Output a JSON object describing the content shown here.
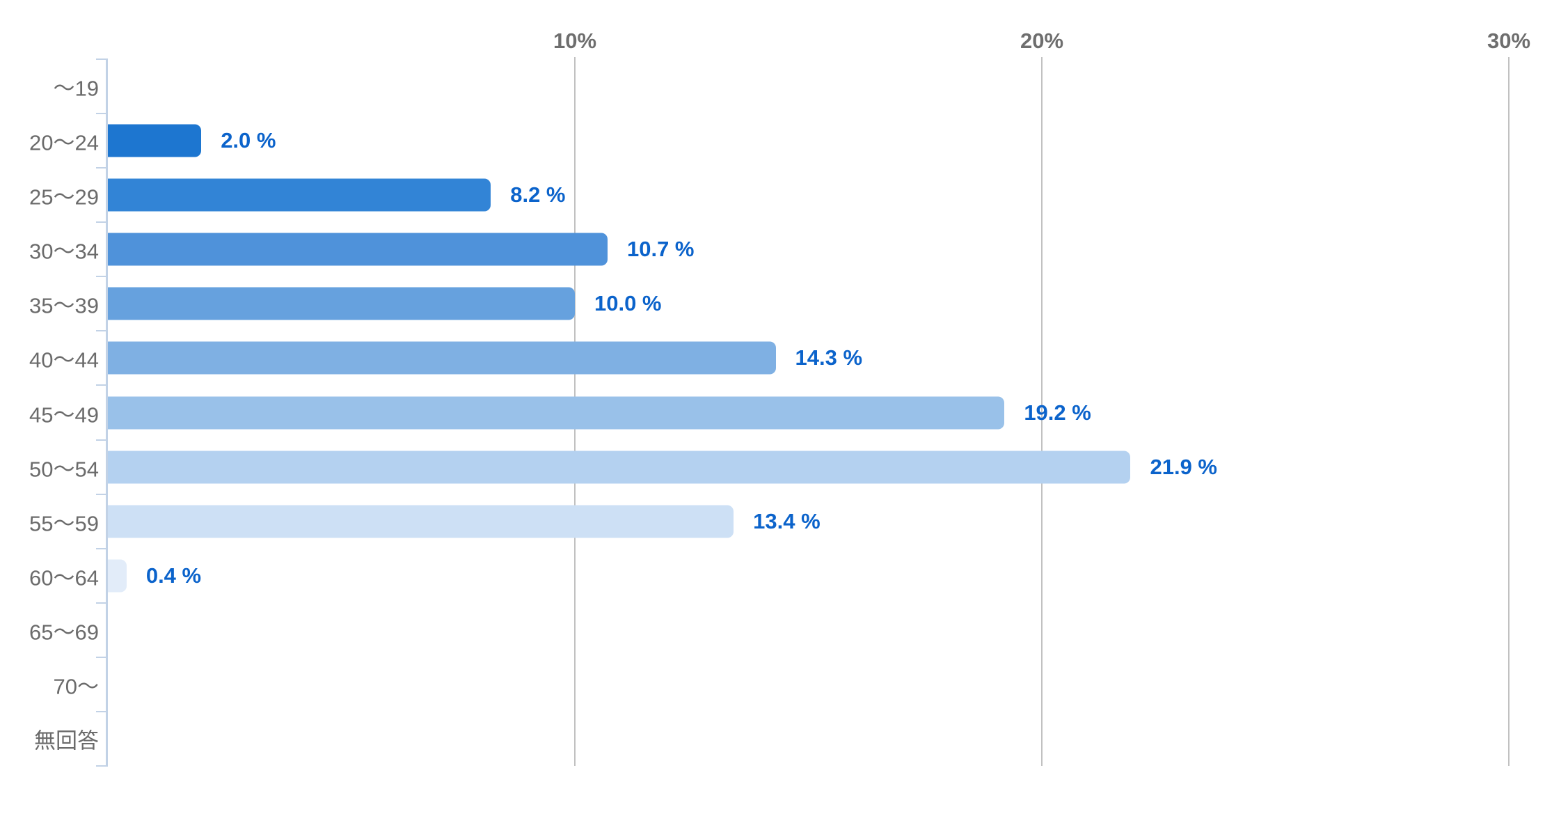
{
  "chart_data": {
    "type": "bar",
    "orientation": "horizontal",
    "title": "",
    "categories": [
      "〜19",
      "20〜24",
      "25〜29",
      "30〜34",
      "35〜39",
      "40〜44",
      "45〜49",
      "50〜54",
      "55〜59",
      "60〜64",
      "65〜69",
      "70〜",
      "無回答"
    ],
    "values": [
      0,
      2.0,
      8.2,
      10.7,
      10.0,
      14.3,
      19.2,
      21.9,
      13.4,
      0.4,
      0,
      0,
      0
    ],
    "value_labels": [
      "",
      "2.0 %",
      "8.2 %",
      "10.7 %",
      "10.0 %",
      "14.3 %",
      "19.2 %",
      "21.9 %",
      "13.4 %",
      "0.4 %",
      "",
      "",
      ""
    ],
    "bar_colors": [
      "",
      "#1d76d0",
      "#3284d6",
      "#4f92da",
      "#66a1de",
      "#7fb0e3",
      "#99c1e9",
      "#b4d1f0",
      "#cde0f5",
      "#e2ecf9",
      "",
      "",
      ""
    ],
    "x_ticks": [
      {
        "label": "10%",
        "value": 10
      },
      {
        "label": "20%",
        "value": 20
      },
      {
        "label": "30%",
        "value": 30
      }
    ],
    "xlim": [
      0,
      30
    ],
    "grid": "vertical-gridlines-behind-bars",
    "legend": "none",
    "ylabel": "",
    "xlabel": ""
  },
  "colors": {
    "value_label": "#0b63cb",
    "axis_tick_label": "#6e6e6e",
    "category_label": "#6b6b6b",
    "gridline": "#c1c1c1",
    "axis_line": "#c2d2e6",
    "background": "#ffffff"
  }
}
